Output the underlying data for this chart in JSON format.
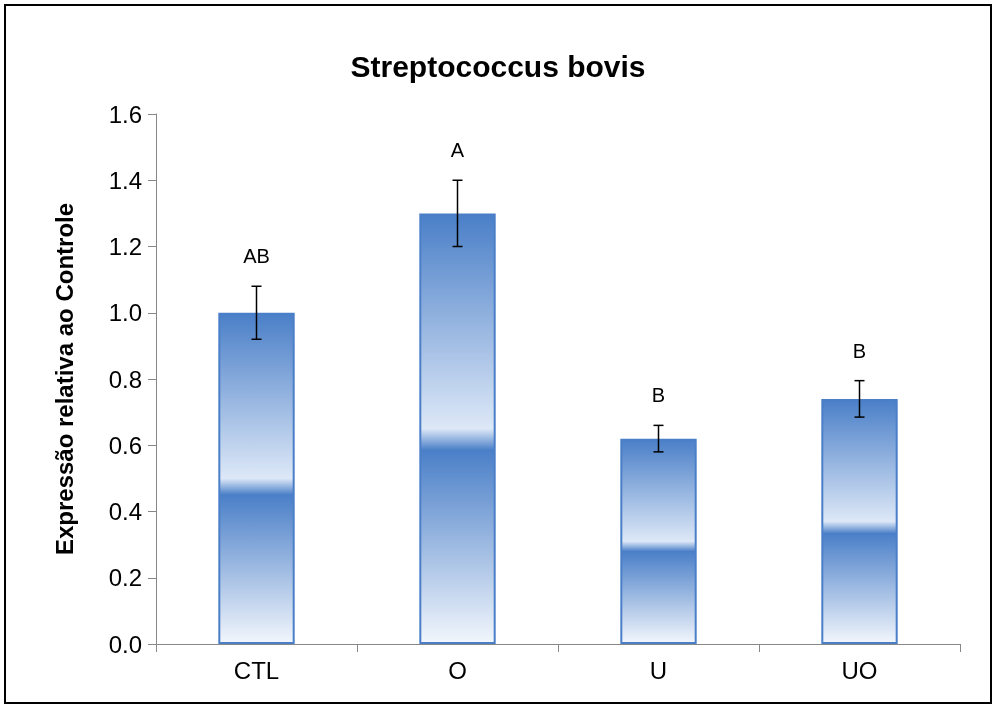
{
  "chart_data": {
    "type": "bar",
    "title": "Streptococcus bovis",
    "ylabel": "Expressão relativa ao Controle",
    "categories": [
      "CTL",
      "O",
      "U",
      "UO"
    ],
    "values": [
      1.0,
      1.3,
      0.62,
      0.74
    ],
    "errors": [
      0.08,
      0.1,
      0.04,
      0.055
    ],
    "color": "#4a7fc8",
    "ylim": [
      0,
      1.6
    ],
    "yticks": [
      {
        "value": 0,
        "label": "0.0"
      },
      {
        "value": 0.2,
        "label": "0.2"
      },
      {
        "value": 0.4,
        "label": "0.4"
      },
      {
        "value": 0.6,
        "label": "0.6"
      },
      {
        "value": 0.8,
        "label": "0.8"
      },
      {
        "value": 1.0,
        "label": "1.0"
      },
      {
        "value": 1.2,
        "label": "1.2"
      },
      {
        "value": 1.4,
        "label": "1.4"
      },
      {
        "value": 1.6,
        "label": "1.6"
      }
    ],
    "annotations": [
      "AB",
      "A",
      "B",
      "B"
    ],
    "grid": false
  }
}
